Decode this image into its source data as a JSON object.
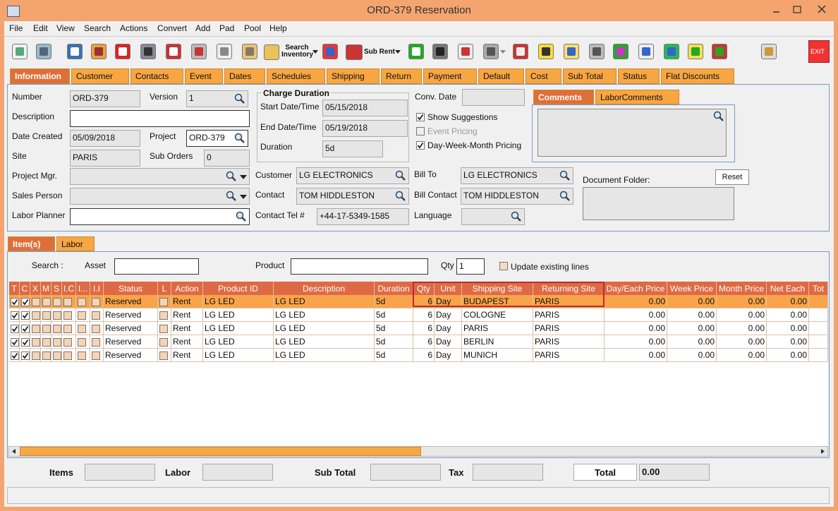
{
  "window": {
    "title": "ORD-379 Reservation"
  },
  "menu": [
    "File",
    "Edit",
    "View",
    "Search",
    "Actions",
    "Convert",
    "Add",
    "Pad",
    "Pool",
    "Help"
  ],
  "toolbar": {
    "search_inventory": "Search Inventory",
    "sub_rent": "Sub Rent",
    "exit": "EXIT"
  },
  "tabs": [
    "Information",
    "Customer",
    "Contacts",
    "Event",
    "Dates",
    "Schedules",
    "Shipping",
    "Return",
    "Payment",
    "Default",
    "Cost",
    "Sub Total",
    "Status",
    "Flat Discounts"
  ],
  "form": {
    "number": {
      "label": "Number",
      "value": "ORD-379"
    },
    "version": {
      "label": "Version",
      "value": "1"
    },
    "description": {
      "label": "Description"
    },
    "date_created": {
      "label": "Date Created",
      "value": "05/09/2018"
    },
    "project": {
      "label": "Project",
      "value": "ORD-379"
    },
    "site": {
      "label": "Site",
      "value": "PARIS"
    },
    "sub_orders": {
      "label": "Sub Orders",
      "value": "0"
    },
    "project_mgr": {
      "label": "Project Mgr."
    },
    "sales_person": {
      "label": "Sales Person"
    },
    "labor_planner": {
      "label": "Labor Planner"
    },
    "charge_duration": {
      "title": "Charge Duration",
      "start": {
        "label": "Start Date/Time",
        "value": "05/15/2018"
      },
      "end": {
        "label": "End Date/Time",
        "value": "05/19/2018"
      },
      "duration": {
        "label": "Duration",
        "value": "5d"
      }
    },
    "customer": {
      "label": "Customer",
      "value": "LG ELECTRONICS"
    },
    "contact": {
      "label": "Contact",
      "value": "TOM HIDDLESTON"
    },
    "contact_tel": {
      "label": "Contact Tel #",
      "value": "+44-17-5349-1585"
    },
    "conv_date": {
      "label": "Conv. Date"
    },
    "bill_to": {
      "label": "Bill To",
      "value": "LG ELECTRONICS"
    },
    "bill_contact": {
      "label": "Bill Contact",
      "value": "TOM HIDDLESTON"
    },
    "language": {
      "label": "Language"
    },
    "options": [
      "Show Suggestions",
      "Event Pricing",
      "Day-Week-Month Pricing"
    ],
    "comment_tabs": [
      "Comments",
      "LaborComments"
    ],
    "document_folder": {
      "label": "Document Folder:",
      "button": "Reset"
    }
  },
  "item_tabs": [
    "Item(s)",
    "Labor"
  ],
  "search": {
    "label": "Search :",
    "asset": "Asset",
    "product": "Product",
    "qty_label": "Qty",
    "qty": "1",
    "update": "Update existing lines"
  },
  "table": {
    "columns": [
      "T",
      "C",
      "X",
      "M",
      "S",
      "I.C",
      "I...",
      "I.I",
      "Status",
      "L",
      "Action",
      "Product ID",
      "Description",
      "Duration",
      "Qty",
      "Unit",
      "Shipping Site",
      "Returning Site",
      "Day/Each Price",
      "Week Price",
      "Month Price",
      "Net Each",
      "Tot"
    ],
    "rows": [
      [
        "Reserved",
        "Rent",
        "LG LED",
        "LG LED",
        "5d",
        "6",
        "Day",
        "BUDAPEST",
        "PARIS",
        "0.00",
        "0.00",
        "0.00",
        "0.00"
      ],
      [
        "Reserved",
        "Rent",
        "LG LED",
        "LG LED",
        "5d",
        "6",
        "Day",
        "COLOGNE",
        "PARIS",
        "0.00",
        "0.00",
        "0.00",
        "0.00"
      ],
      [
        "Reserved",
        "Rent",
        "LG LED",
        "LG LED",
        "5d",
        "6",
        "Day",
        "PARIS",
        "PARIS",
        "0.00",
        "0.00",
        "0.00",
        "0.00"
      ],
      [
        "Reserved",
        "Rent",
        "LG LED",
        "LG LED",
        "5d",
        "6",
        "Day",
        "BERLIN",
        "PARIS",
        "0.00",
        "0.00",
        "0.00",
        "0.00"
      ],
      [
        "Reserved",
        "Rent",
        "LG LED",
        "LG LED",
        "5d",
        "6",
        "Day",
        "MUNICH",
        "PARIS",
        "0.00",
        "0.00",
        "0.00",
        "0.00"
      ]
    ]
  },
  "footer": {
    "items": "Items",
    "labor": "Labor",
    "sub_total": "Sub Total",
    "tax": "Tax",
    "total": "Total",
    "total_value": "0.00"
  }
}
